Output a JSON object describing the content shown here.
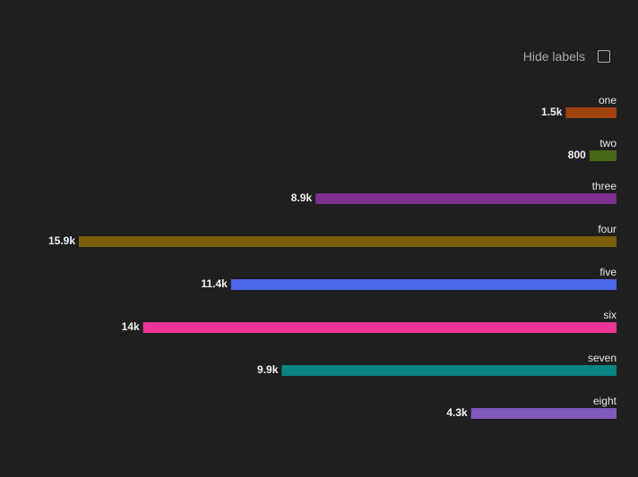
{
  "controls": {
    "hide_labels": "Hide labels",
    "hide_labels_checked": false
  },
  "chart_data": {
    "type": "bar",
    "orientation": "horizontal",
    "direction": "right-to-left",
    "categories": [
      "one",
      "two",
      "three",
      "four",
      "five",
      "six",
      "seven",
      "eight"
    ],
    "values": [
      1500,
      800,
      8900,
      15900,
      11400,
      14000,
      9900,
      4300
    ],
    "value_labels": [
      "1.5k",
      "800",
      "8.9k",
      "15.9k",
      "11.4k",
      "14k",
      "9.9k",
      "4.3k"
    ],
    "colors": [
      "#a0420e",
      "#4a6618",
      "#7c2f8c",
      "#7a5e0b",
      "#4a68e8",
      "#ec3596",
      "#0a8383",
      "#7f58ba"
    ],
    "xlim": [
      0,
      15900
    ]
  }
}
